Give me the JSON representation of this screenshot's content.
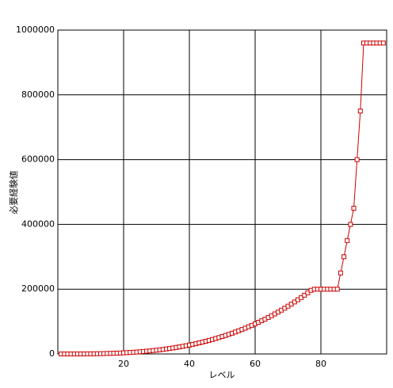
{
  "chart_data": {
    "type": "line",
    "xlabel": "レベル",
    "ylabel": "必要経験値",
    "x": [
      1,
      2,
      3,
      4,
      5,
      6,
      7,
      8,
      9,
      10,
      11,
      12,
      13,
      14,
      15,
      16,
      17,
      18,
      19,
      20,
      21,
      22,
      23,
      24,
      25,
      26,
      27,
      28,
      29,
      30,
      31,
      32,
      33,
      34,
      35,
      36,
      37,
      38,
      39,
      40,
      41,
      42,
      43,
      44,
      45,
      46,
      47,
      48,
      49,
      50,
      51,
      52,
      53,
      54,
      55,
      56,
      57,
      58,
      59,
      60,
      61,
      62,
      63,
      64,
      65,
      66,
      67,
      68,
      69,
      70,
      71,
      72,
      73,
      74,
      75,
      76,
      77,
      78,
      79,
      80,
      81,
      82,
      83,
      84,
      85,
      86,
      87,
      88,
      89,
      90,
      91,
      92,
      93,
      94,
      95,
      96,
      97,
      98,
      99
    ],
    "series": [
      {
        "color": "#cc0000",
        "values": [
          0,
          0,
          0,
          0,
          100,
          100,
          100,
          200,
          300,
          400,
          600,
          700,
          900,
          1200,
          1500,
          1800,
          2100,
          2500,
          2900,
          3400,
          4000,
          4600,
          5200,
          5900,
          6700,
          7600,
          8500,
          9400,
          10500,
          11600,
          12800,
          14100,
          15500,
          16900,
          18400,
          20100,
          21800,
          23600,
          25500,
          27500,
          29600,
          31900,
          34200,
          36600,
          39200,
          41900,
          44600,
          47600,
          50600,
          53800,
          57000,
          60500,
          64000,
          67700,
          71500,
          75500,
          79600,
          83900,
          88300,
          92900,
          97600,
          102500,
          107500,
          112700,
          118100,
          123600,
          129300,
          135200,
          141300,
          147500,
          153900,
          160500,
          167300,
          174200,
          181400,
          188800,
          196300,
          200000,
          200000,
          200000,
          200000,
          200000,
          200000,
          200000,
          200000,
          250000,
          300000,
          350000,
          400000,
          450000,
          600000,
          750000,
          960000,
          960000,
          960000,
          960000,
          960000,
          960000,
          960000
        ]
      }
    ],
    "xlim": [
      0,
      100
    ],
    "xticks": [
      20,
      40,
      60,
      80
    ],
    "ylim": [
      0,
      1000000
    ],
    "yticks": [
      0,
      200000,
      400000,
      600000,
      800000,
      1000000
    ],
    "grid": true
  }
}
